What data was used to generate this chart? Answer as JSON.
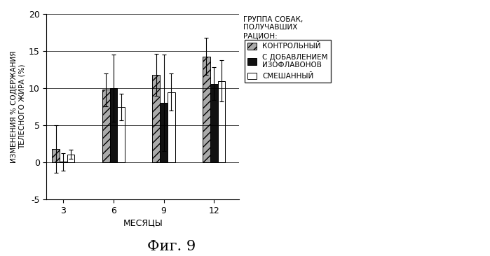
{
  "categories": [
    3,
    6,
    9,
    12
  ],
  "bar_labels": [
    "КОНТРОЛЬНЫЙ",
    "С ДОБАВЛЕНИЕМ\nИЗОФЛАВОНОВ",
    "СМЕШАННЫЙ"
  ],
  "bar_colors": [
    "#aaaaaa",
    "#111111",
    "#ffffff"
  ],
  "bar_hatches": [
    "///",
    "",
    ""
  ],
  "bar_edgecolor": "#000000",
  "values": [
    [
      1.8,
      9.8,
      11.8,
      14.3
    ],
    [
      0.1,
      10.0,
      8.0,
      10.6
    ],
    [
      1.1,
      7.5,
      9.5,
      11.0
    ]
  ],
  "errors": [
    [
      3.2,
      2.2,
      2.8,
      2.5
    ],
    [
      1.2,
      4.5,
      6.5,
      2.2
    ],
    [
      0.6,
      1.8,
      2.5,
      2.8
    ]
  ],
  "ylim": [
    -5,
    20
  ],
  "yticks": [
    -5,
    0,
    5,
    10,
    15,
    20
  ],
  "xlabel": "МЕСЯЦЫ",
  "ylabel": "ИЗМЕНЕНИЯ % СОДЕРЖАНИЯ\nТЕЛЕСНОГО ЖИРА (%)",
  "legend_title": "ГРУППА СОБАК,\nПОЛУЧАВШИХ\nРАЦИОН:",
  "caption": "Фиг. 9",
  "bar_width": 0.18,
  "group_positions": [
    0.7,
    1.9,
    3.1,
    4.3
  ],
  "background_color": "#ffffff"
}
